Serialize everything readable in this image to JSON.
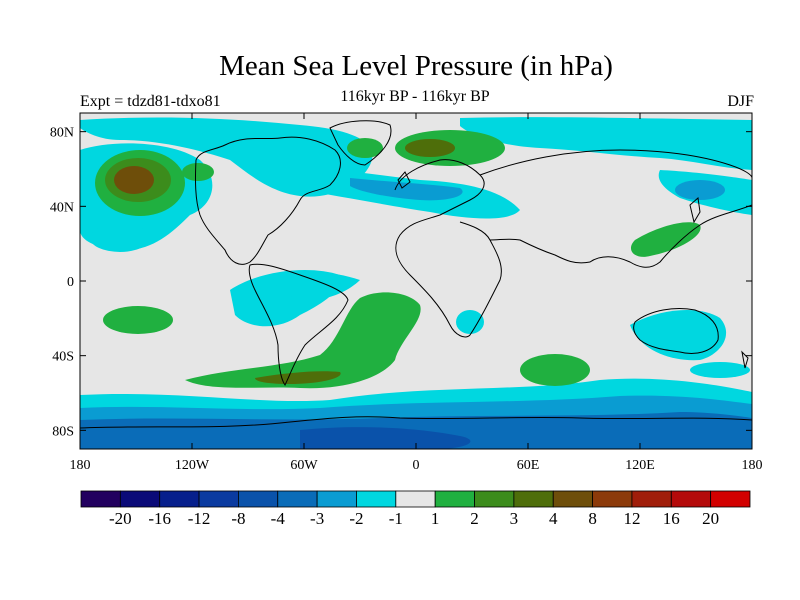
{
  "title": "Mean Sea Level Pressure (in hPa)",
  "subtitle": "116kyr BP - 116kyr BP",
  "left_label": "Expt = tdzd81-tdxo81",
  "right_label": "DJF",
  "map": {
    "lon_range": [
      -180,
      180
    ],
    "lat_range": [
      -90,
      90
    ],
    "x_ticks": [
      {
        "lon": -180,
        "label": "180"
      },
      {
        "lon": -120,
        "label": "120W"
      },
      {
        "lon": -60,
        "label": "60W"
      },
      {
        "lon": 0,
        "label": "0"
      },
      {
        "lon": 60,
        "label": "60E"
      },
      {
        "lon": 120,
        "label": "120E"
      },
      {
        "lon": 180,
        "label": "180"
      }
    ],
    "y_ticks": [
      {
        "lat": 80,
        "label": "80N"
      },
      {
        "lat": 40,
        "label": "40N"
      },
      {
        "lat": 0,
        "label": "0"
      },
      {
        "lat": -40,
        "label": "40S"
      },
      {
        "lat": -80,
        "label": "80S"
      }
    ]
  },
  "colorbar": {
    "colors": [
      "#22005f",
      "#0a0a78",
      "#061f8c",
      "#0a3aa0",
      "#0a52aa",
      "#0a6cb8",
      "#0a9cd2",
      "#00d7e0",
      "#e6e6e6",
      "#20b040",
      "#3c8c1c",
      "#4e6e0a",
      "#6e4e0a",
      "#8c3a0a",
      "#a01e0a",
      "#b40a0a",
      "#d20000"
    ],
    "labels": [
      "-20",
      "-16",
      "-12",
      "-8",
      "-4",
      "-3",
      "-2",
      "-1",
      "1",
      "2",
      "3",
      "4",
      "8",
      "12",
      "16",
      "20"
    ]
  }
}
